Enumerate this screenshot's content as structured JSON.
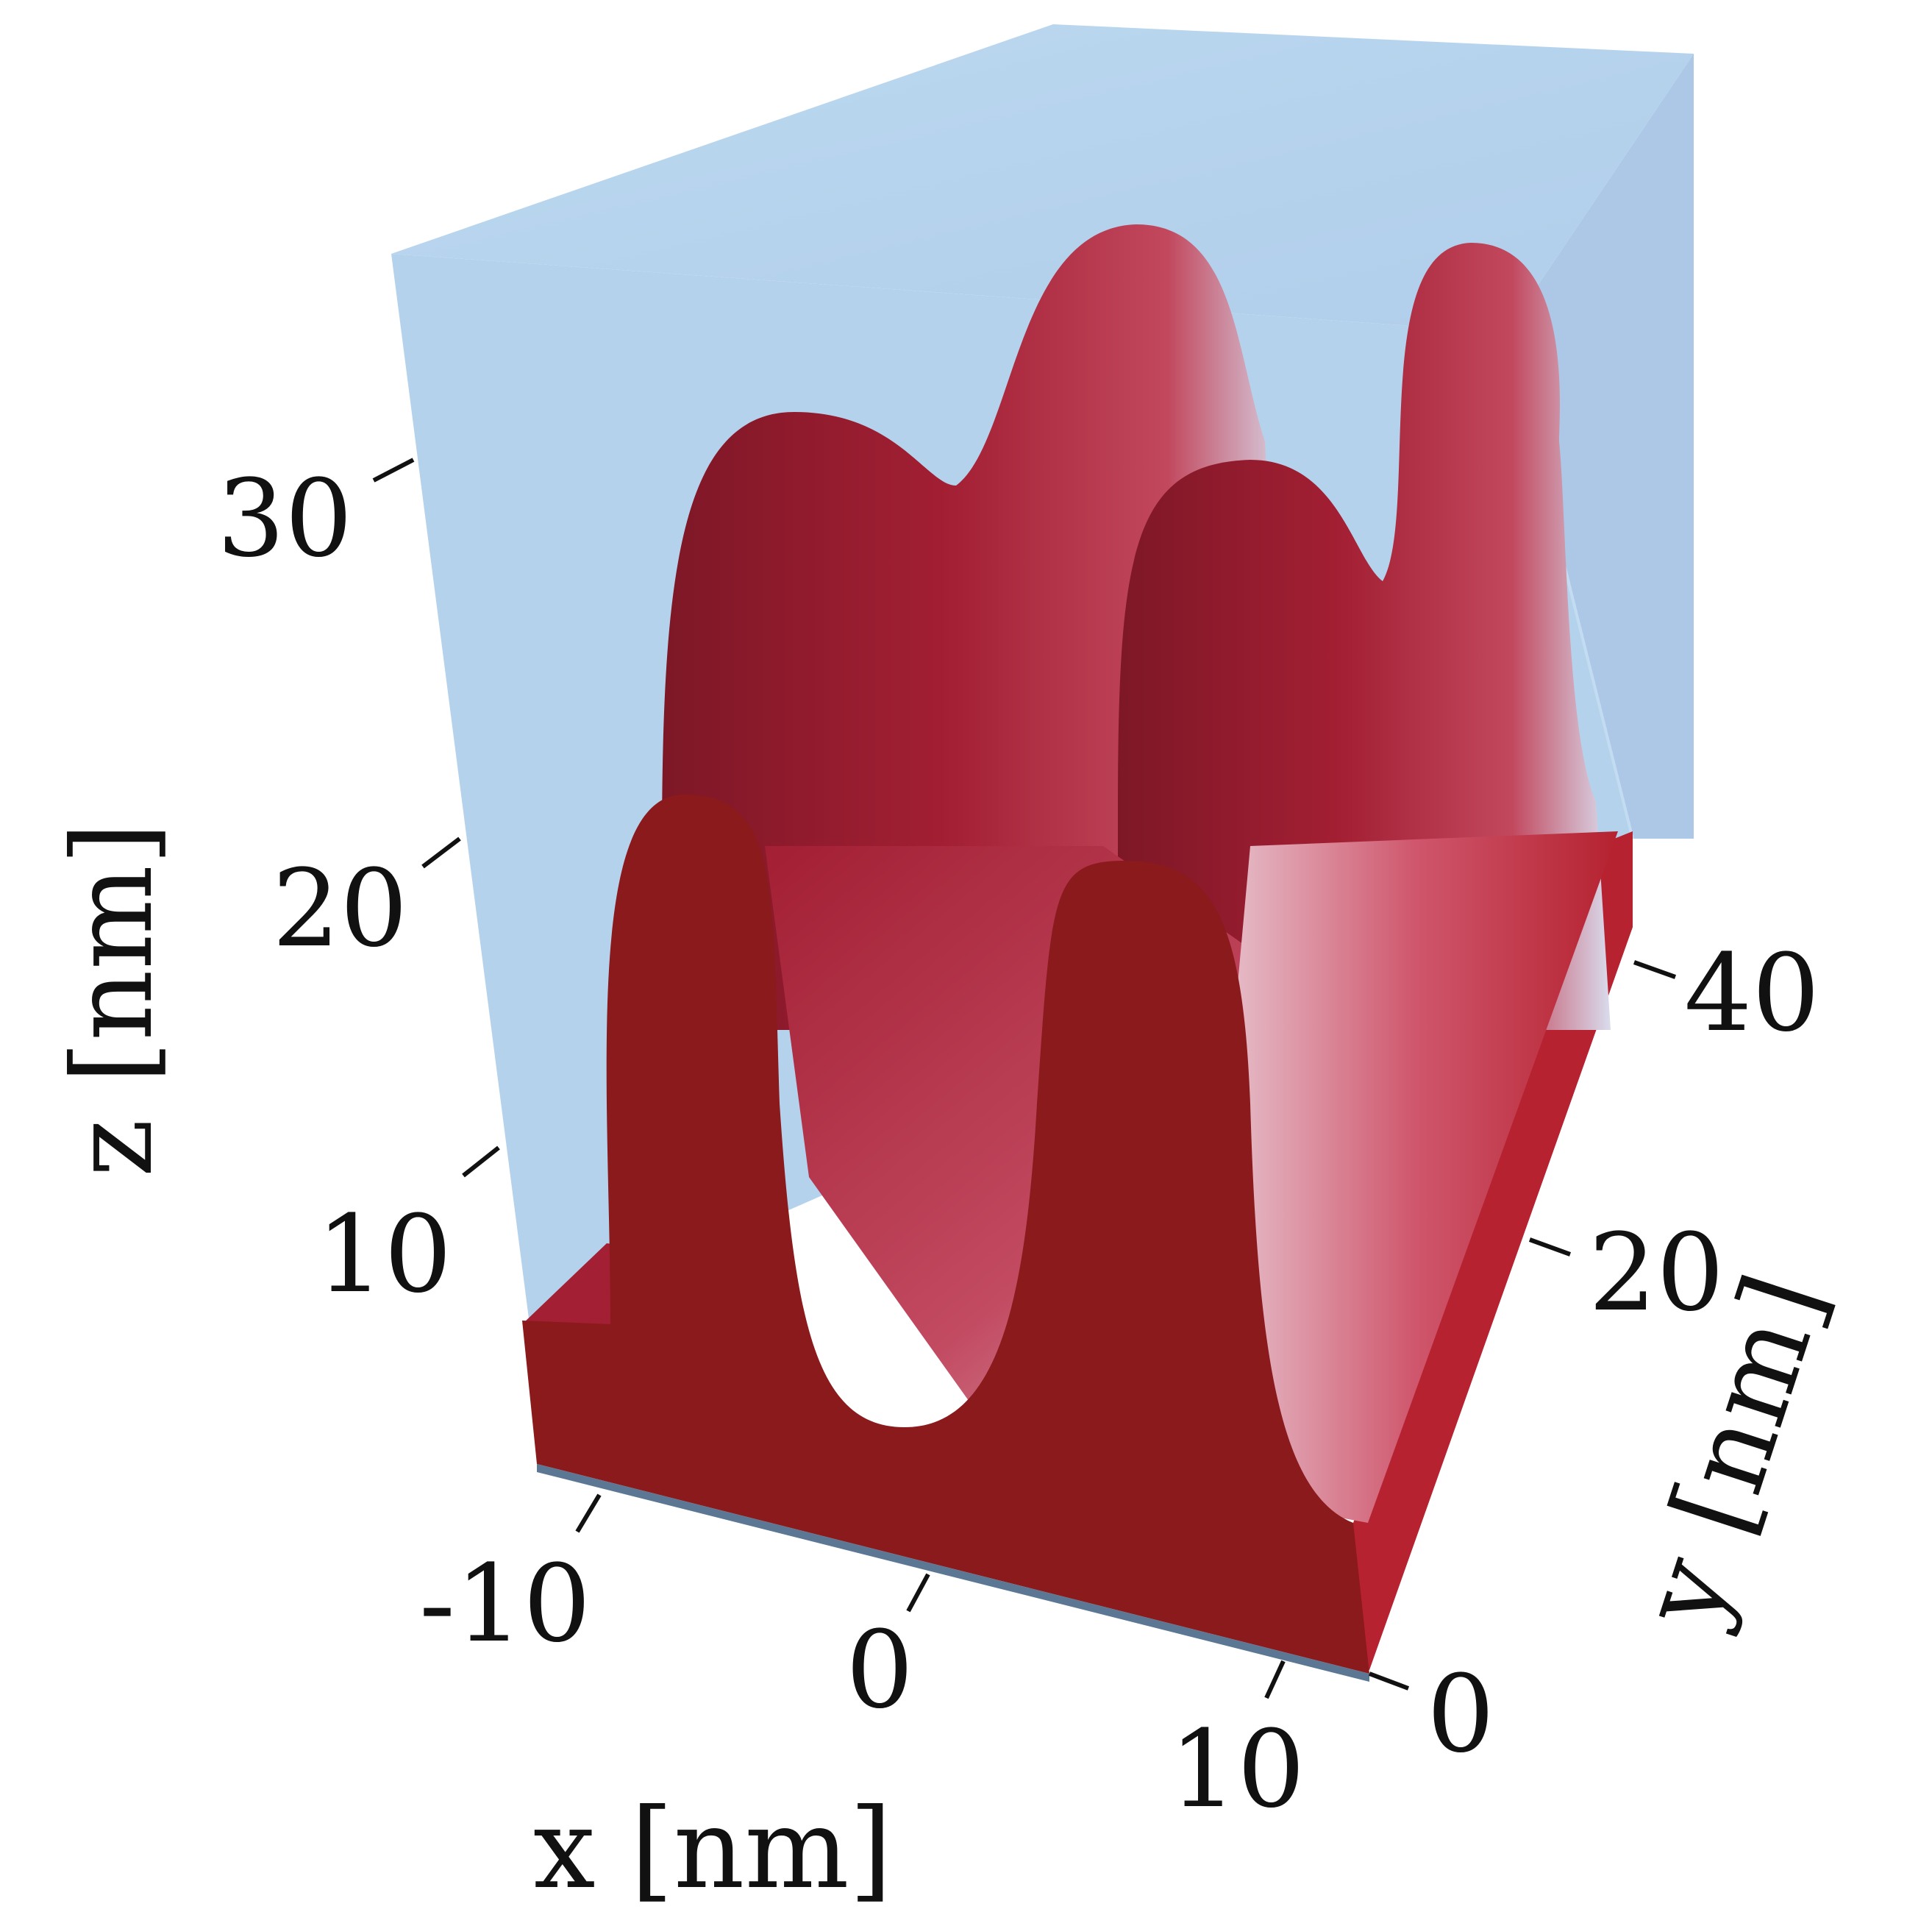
{
  "colors": {
    "box": "#b6d3ec",
    "box_side": "#aecbea",
    "material_top": "#a31f33",
    "material_dark": "#7d1726",
    "cross_section": "#8a1a1c",
    "highlight": "#d9dced",
    "base_line": "#5b7793"
  },
  "axes": {
    "x": {
      "title": "x [nm]",
      "ticks": [
        "-10",
        "0",
        "10"
      ]
    },
    "y": {
      "title": "y [nm]",
      "ticks": [
        "0",
        "20",
        "40"
      ]
    },
    "z": {
      "title": "z [nm]",
      "ticks": [
        "10",
        "20",
        "30"
      ]
    }
  }
}
